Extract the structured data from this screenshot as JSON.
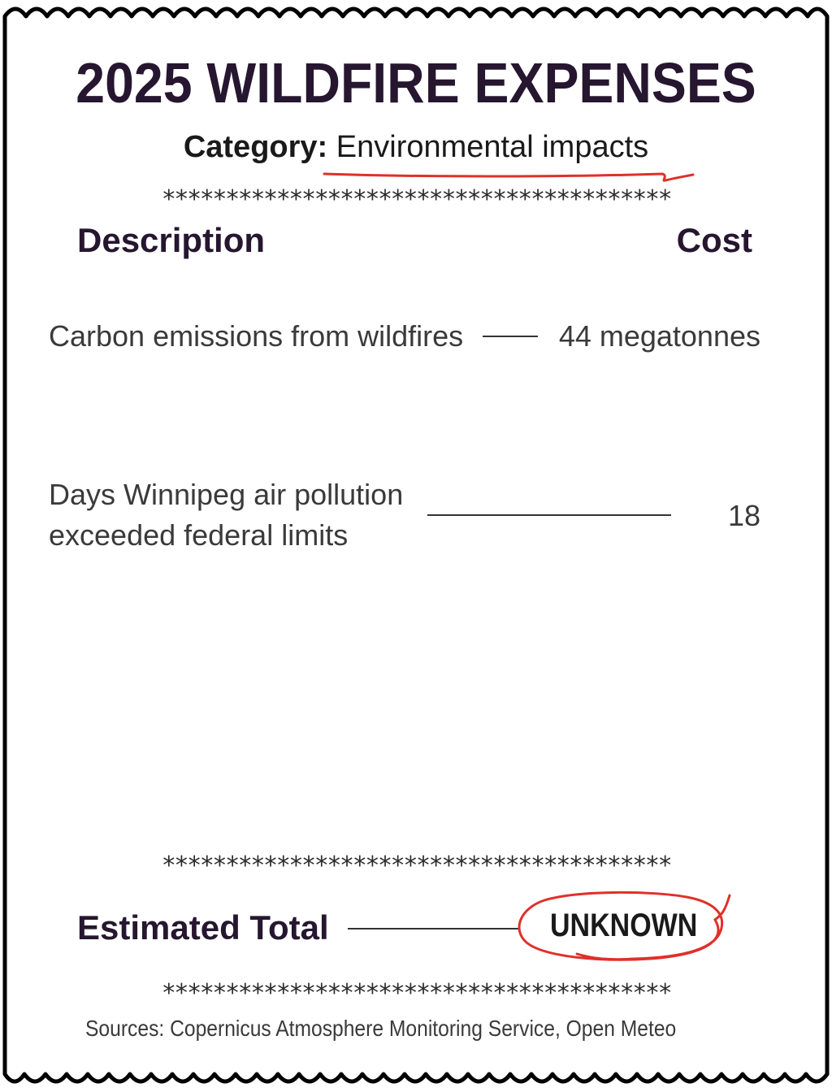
{
  "title": "2025 WILDFIRE EXPENSES",
  "category": {
    "label": "Category:",
    "value": "Environmental impacts"
  },
  "separator": "****************************************",
  "columns": {
    "description": "Description",
    "cost": "Cost"
  },
  "items": [
    {
      "description": "Carbon emissions from wildfires",
      "cost": "44 megatonnes"
    },
    {
      "description_line1": "Days Winnipeg air pollution",
      "description_line2": "exceeded federal limits",
      "cost": "18"
    }
  ],
  "total": {
    "label": "Estimated  Total",
    "value": "UNKNOWN"
  },
  "sources": "Sources: Copernicus Atmosphere Monitoring Service, Open Meteo",
  "colors": {
    "title": "#26162f",
    "annotation": "#e0302a",
    "text": "#3a3a3a"
  }
}
